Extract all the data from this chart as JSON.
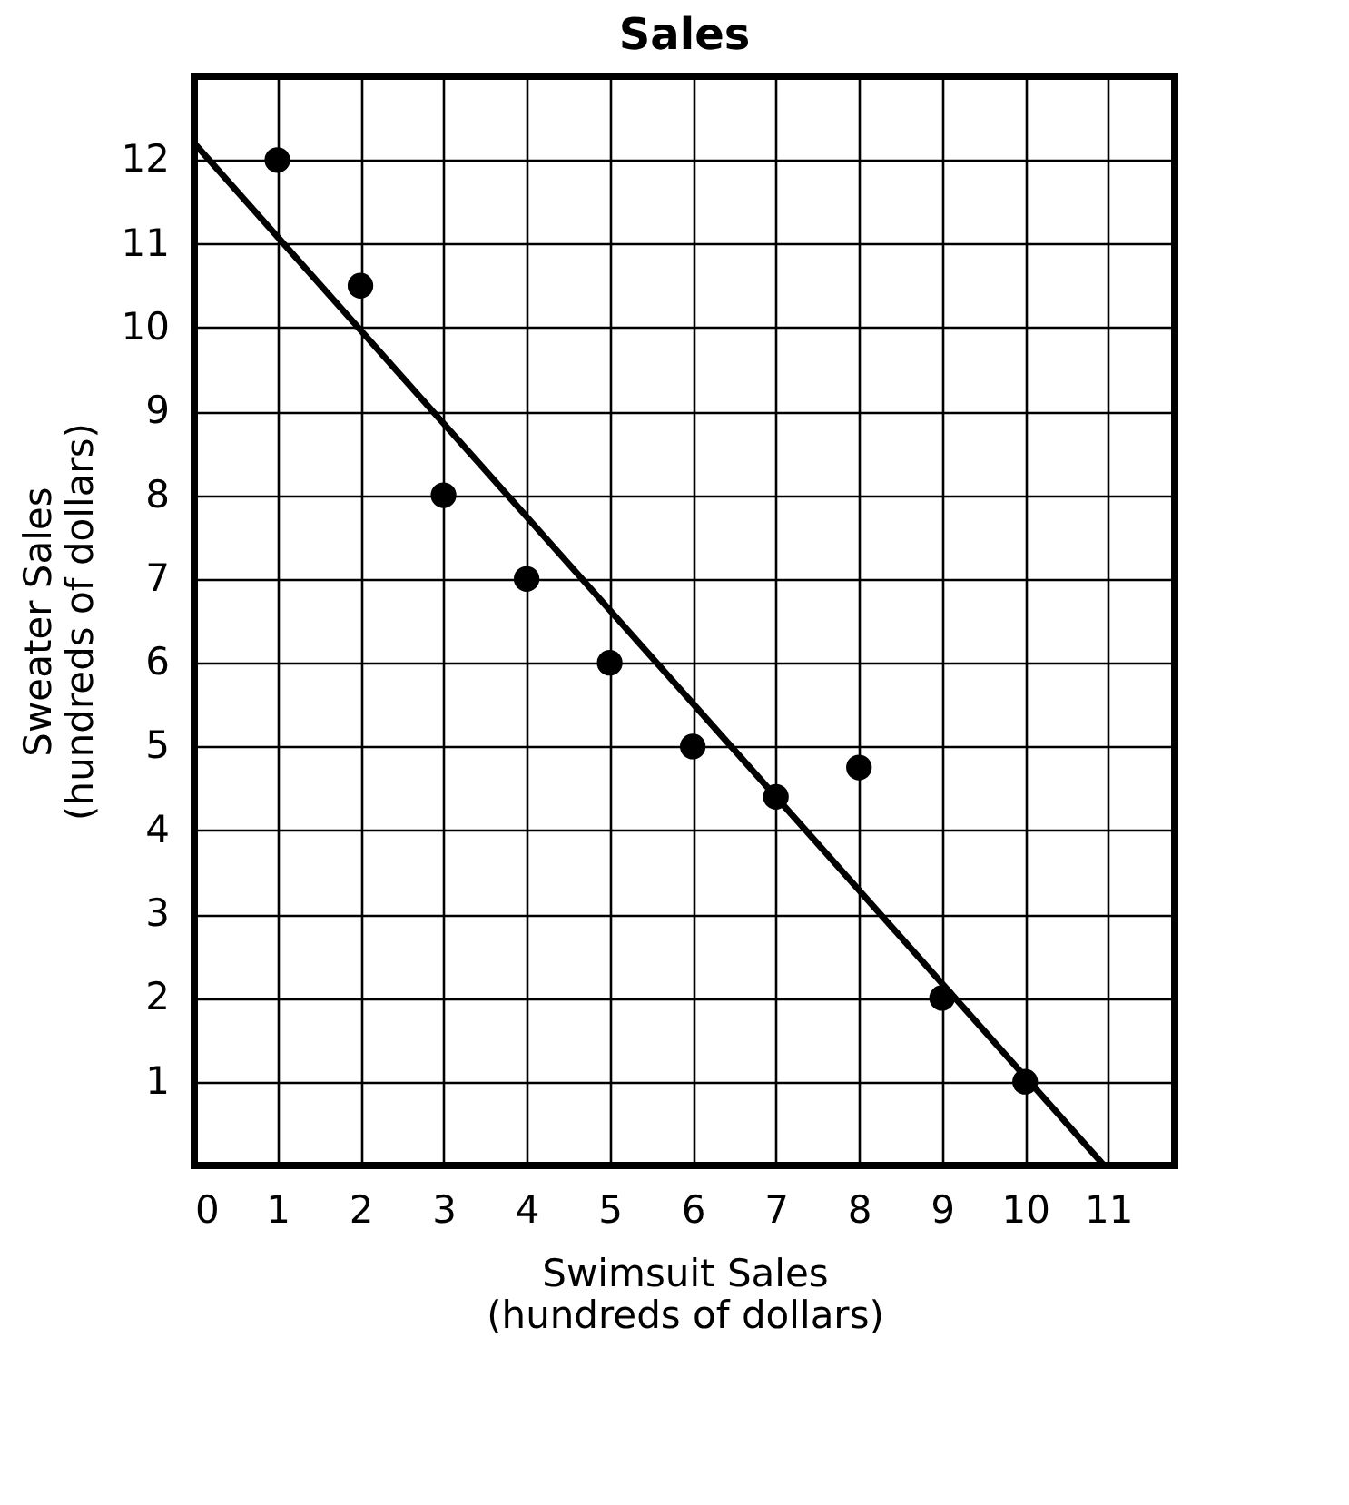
{
  "chart_data": {
    "type": "scatter",
    "title": "Sales",
    "xlabel": "Swimsuit Sales\n(hundreds of dollars)",
    "ylabel": "Sweater Sales\n(hundreds of dollars)",
    "xlim": [
      0,
      11.8
    ],
    "ylim": [
      0,
      13
    ],
    "xticks": [
      0,
      1,
      2,
      3,
      4,
      5,
      6,
      7,
      8,
      9,
      10,
      11
    ],
    "yticks": [
      1,
      2,
      3,
      4,
      5,
      6,
      7,
      8,
      9,
      10,
      11,
      12
    ],
    "grid": true,
    "series": [
      {
        "marker": "circle",
        "color": "#000000",
        "x": [
          1,
          2,
          3,
          4,
          5,
          6,
          7,
          8,
          9,
          10
        ],
        "values": [
          12,
          10.5,
          8,
          7,
          6,
          5,
          4.4,
          4.75,
          2,
          1
        ]
      },
      {
        "type": "line",
        "marker": "none",
        "color": "#000000",
        "line_style": "solid",
        "x": [
          0,
          10.95
        ],
        "values": [
          12.2,
          0
        ]
      }
    ]
  }
}
